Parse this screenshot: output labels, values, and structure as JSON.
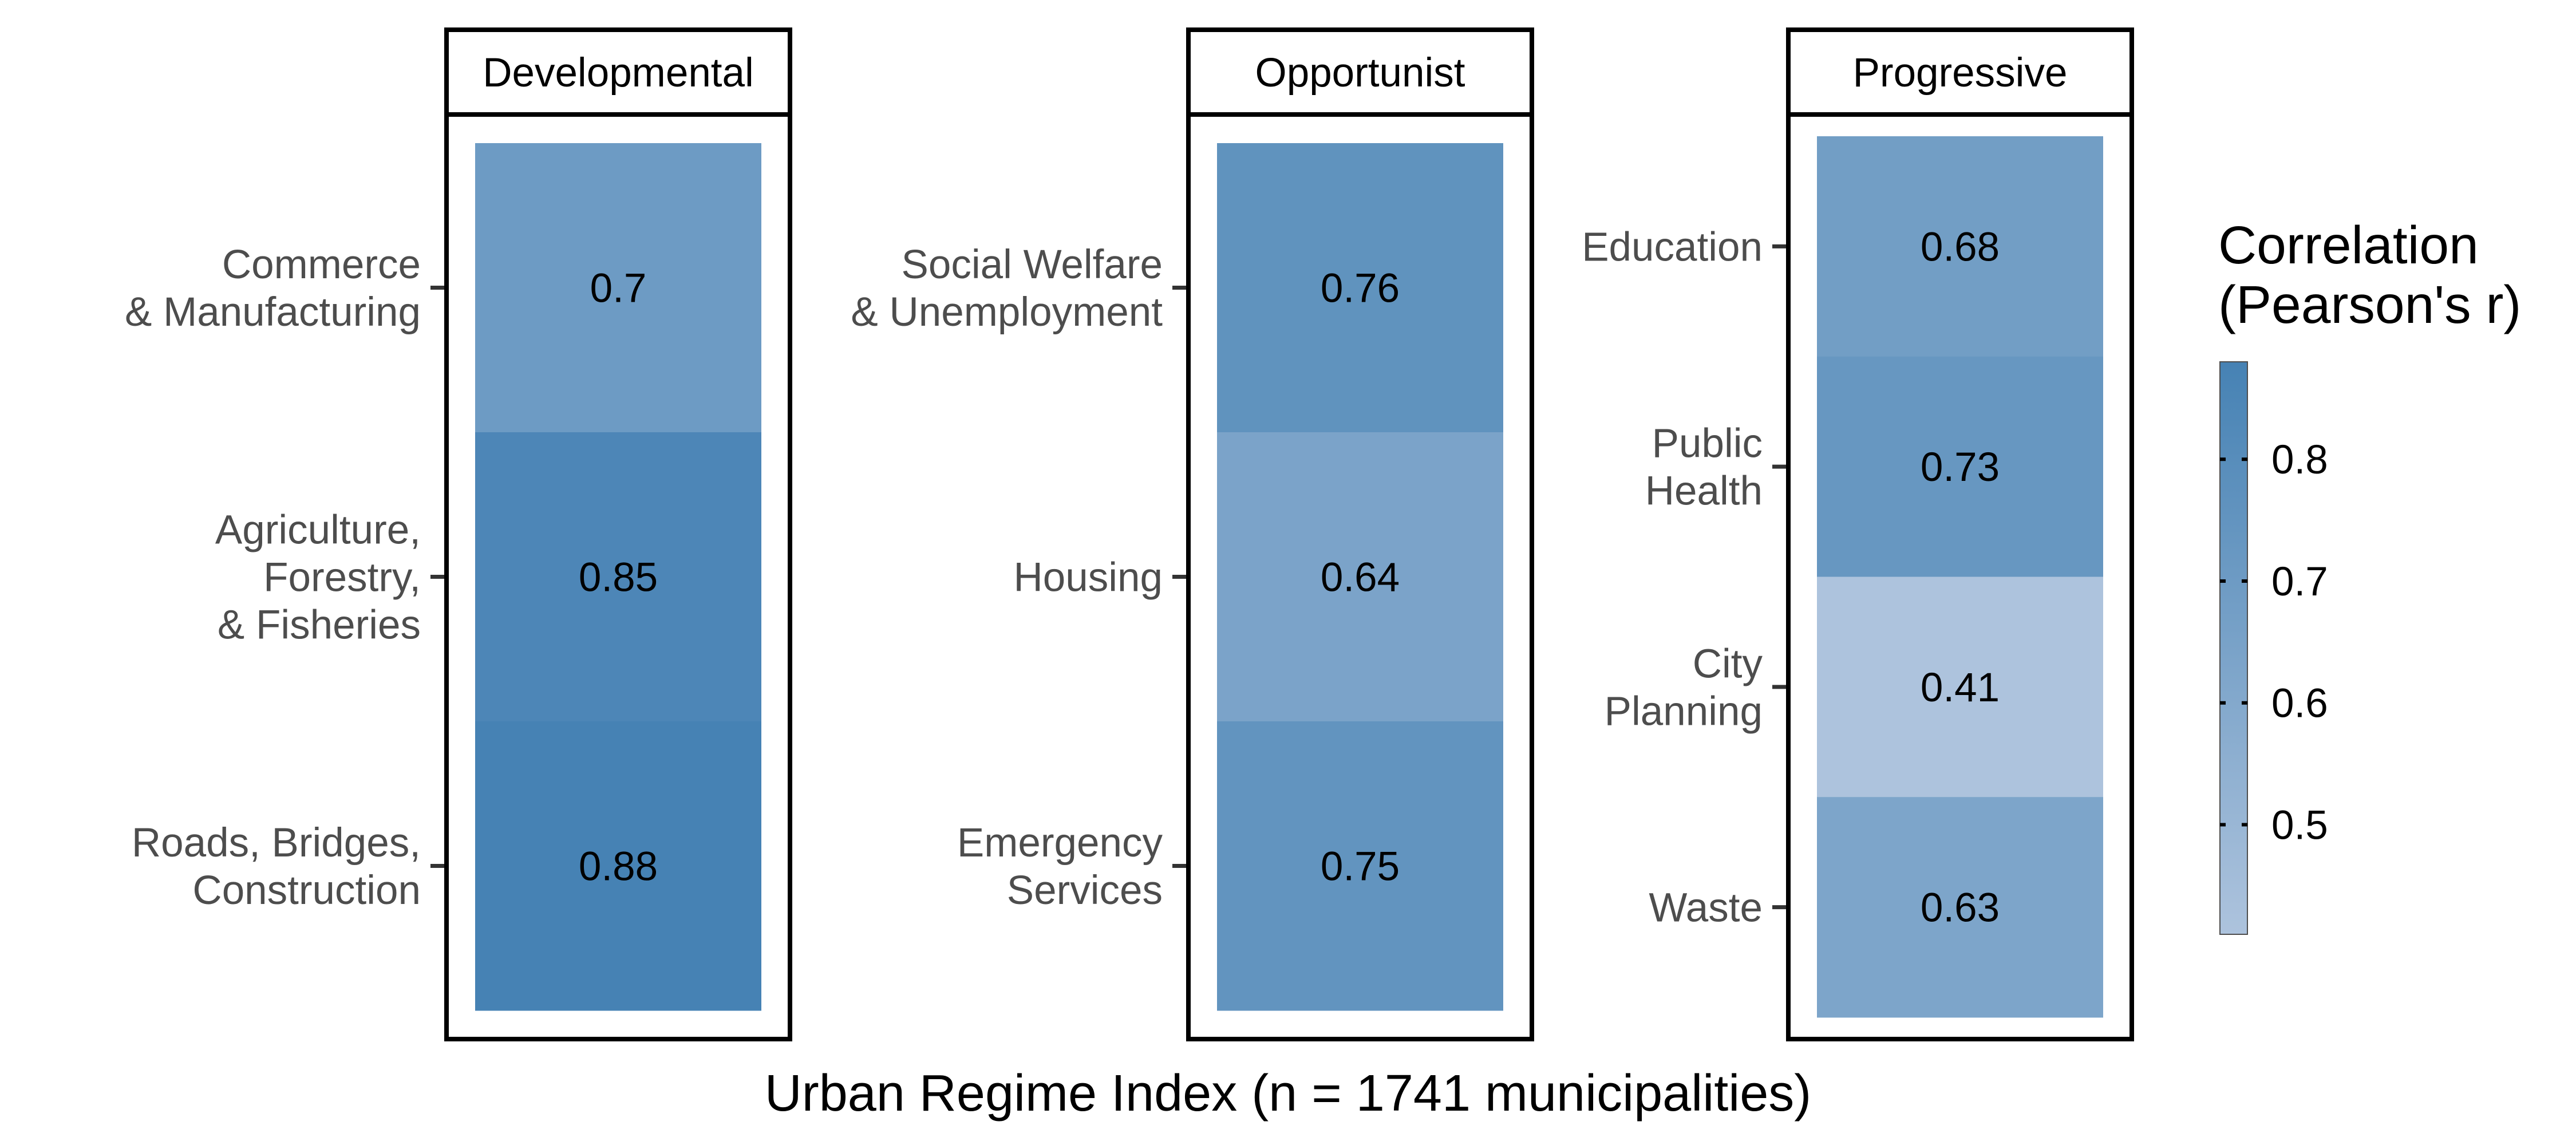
{
  "chart_data": {
    "type": "heatmap",
    "xlabel": "Urban Regime Index (n = 1741 municipalities)",
    "legend": {
      "title_lines": [
        "Correlation",
        "(Pearson's r)"
      ],
      "ticks": [
        0.5,
        0.6,
        0.7,
        0.8
      ],
      "range": [
        0.41,
        0.88
      ],
      "color_low": "#adc3dd",
      "color_high": "#4682b4",
      "placement": "right"
    },
    "facets": [
      {
        "title": "Developmental",
        "rows": [
          {
            "label_lines": [
              "Commerce",
              "& Manufacturing"
            ],
            "value": 0.7
          },
          {
            "label_lines": [
              "Agriculture,",
              "Forestry,",
              "& Fisheries"
            ],
            "value": 0.85
          },
          {
            "label_lines": [
              "Roads, Bridges,",
              "Construction"
            ],
            "value": 0.88
          }
        ]
      },
      {
        "title": "Opportunist",
        "rows": [
          {
            "label_lines": [
              "Social Welfare",
              "& Unemployment"
            ],
            "value": 0.76
          },
          {
            "label_lines": [
              "Housing"
            ],
            "value": 0.64
          },
          {
            "label_lines": [
              "Emergency",
              "Services"
            ],
            "value": 0.75
          }
        ]
      },
      {
        "title": "Progressive",
        "rows": [
          {
            "label_lines": [
              "Education"
            ],
            "value": 0.68
          },
          {
            "label_lines": [
              "Public",
              "Health"
            ],
            "value": 0.73
          },
          {
            "label_lines": [
              "City",
              "Planning"
            ],
            "value": 0.41
          },
          {
            "label_lines": [
              "Waste"
            ],
            "value": 0.63
          }
        ]
      }
    ]
  }
}
